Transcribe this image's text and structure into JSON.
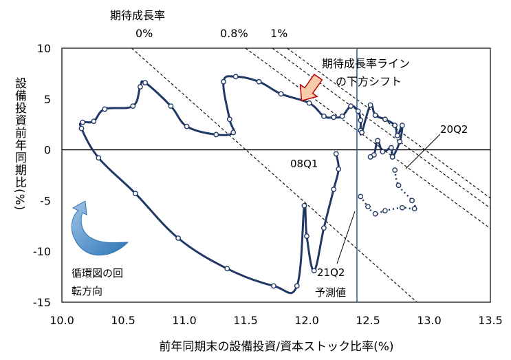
{
  "chart_data": {
    "type": "scatter",
    "xlabel": "前年同期末の設備投資/資本ストック比率(%)",
    "ylabel": "設備投資前年同期比(%)",
    "xlim": [
      10.0,
      13.5
    ],
    "ylim": [
      -15,
      10
    ],
    "x_ticks": [
      "10.0",
      "10.5",
      "11.0",
      "11.5",
      "12.0",
      "12.5",
      "13.0",
      "13.5"
    ],
    "y_ticks": [
      "10",
      "5",
      "0",
      "-5",
      "-10",
      "-15"
    ],
    "x_tick_values": [
      10.0,
      10.5,
      11.0,
      11.5,
      12.0,
      12.5,
      13.0,
      13.5
    ],
    "y_tick_values": [
      10,
      5,
      0,
      -5,
      -10,
      -15
    ],
    "grid": false,
    "reference_lines": [
      {
        "label": "0%",
        "points": [
          [
            10.57,
            10
          ],
          [
            12.9,
            -15
          ]
        ]
      },
      {
        "label": "0.8%",
        "points": [
          [
            11.5,
            10
          ],
          [
            13.5,
            -7.75
          ]
        ]
      },
      {
        "label": "1%",
        "points": [
          [
            11.72,
            10
          ],
          [
            13.5,
            -5.75
          ]
        ]
      },
      {
        "label": "",
        "points": [
          [
            11.84,
            10
          ],
          [
            13.5,
            -4.75
          ]
        ]
      }
    ],
    "vertical_line_x": 12.41,
    "series": [
      {
        "line_style": "solid",
        "x": [
          12.24,
          12.26,
          12.22,
          12.14,
          12.06,
          12.0,
          11.98,
          11.92,
          11.73,
          11.35,
          10.95,
          10.6,
          10.3,
          10.16,
          10.17,
          10.26,
          10.35,
          10.58,
          10.64,
          10.68,
          10.89,
          11.02,
          11.26,
          11.4,
          11.37,
          11.32,
          11.42,
          11.61,
          11.79,
          12.02,
          12.14,
          12.22,
          12.29,
          12.36,
          12.42,
          12.44,
          12.44,
          12.45,
          12.52,
          12.56,
          12.64,
          12.72,
          12.74,
          12.78,
          12.76,
          12.7,
          12.69,
          12.62,
          12.58,
          12.55,
          12.52
        ],
        "y": [
          -0.4,
          -1.9,
          -3.9,
          -7.7,
          -11.9,
          -8.5,
          -5.5,
          -13.4,
          -13.4,
          -11.7,
          -8.7,
          -4.3,
          -0.8,
          2.1,
          2.7,
          2.8,
          4.0,
          4.3,
          6.2,
          6.6,
          4.3,
          2.3,
          1.5,
          1.7,
          3.0,
          6.7,
          7.2,
          6.7,
          5.5,
          4.6,
          3.3,
          3.2,
          3.3,
          4.3,
          3.8,
          2.9,
          1.9,
          1.7,
          4.4,
          3.4,
          3.0,
          2.4,
          1.4,
          2.4,
          0.8,
          -0.7,
          0.2,
          -0.2,
          0.9,
          -0.5,
          -0.7
        ]
      },
      {
        "line_style": "dotted",
        "x": [
          12.72,
          12.75,
          12.86,
          12.88,
          12.78,
          12.64,
          12.56,
          12.5,
          12.44
        ],
        "y": [
          -2.0,
          -3.5,
          -5.0,
          -5.8,
          -5.7,
          -6.0,
          -6.3,
          -5.6,
          -4.6
        ]
      }
    ],
    "annotations": {
      "expected_growth_title": "期待成長率",
      "line_0_label": "0%",
      "line_08_label": "0.8%",
      "line_1_label": "1%",
      "shift_line1": "期待成長率ライン",
      "shift_line2": "の下方シフト",
      "q_2008": "08Q1",
      "q_2020": "20Q2",
      "q_2021": "21Q2",
      "forecast": "予測値",
      "rotation_line1": "循環図の回",
      "rotation_line2": "転方向"
    }
  },
  "colors": {
    "series": "#1f3864",
    "vertical_line": "#2f5597",
    "arrow_fill": "#f8cbad",
    "arrow_stroke": "#c00000",
    "rotation_arrow": "#4f81bd"
  }
}
